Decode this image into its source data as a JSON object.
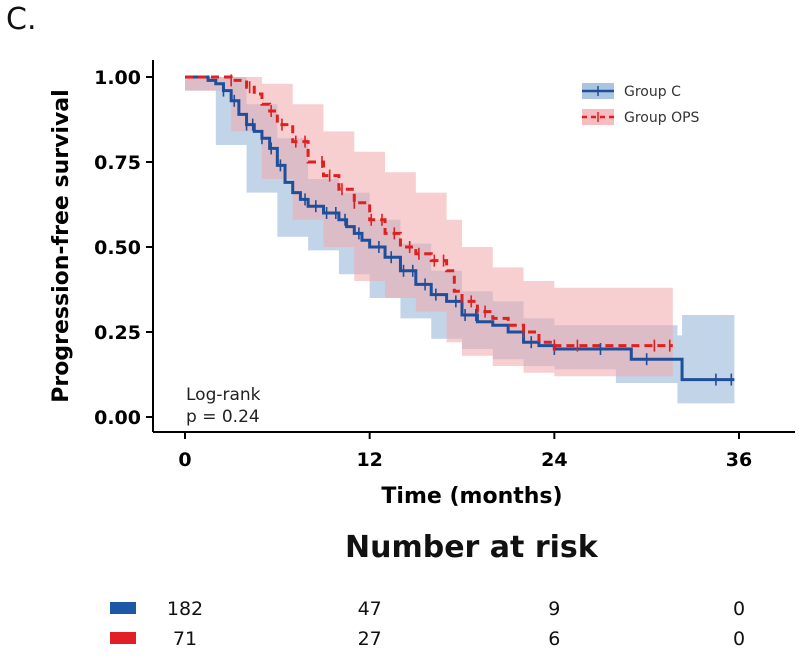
{
  "panel_label": "C.",
  "chart_data": {
    "type": "line",
    "subtype": "kaplan-meier",
    "ylabel": "Progression-free survival",
    "xlabel": "Time (months)",
    "xlim": [
      0,
      37
    ],
    "ylim": [
      0,
      1.0
    ],
    "xticks": [
      "0",
      "12",
      "24",
      "36"
    ],
    "xtick_values": [
      0,
      12,
      24,
      36
    ],
    "yticks": [
      "0.00",
      "0.25",
      "0.50",
      "0.75",
      "1.00"
    ],
    "ytick_values": [
      0,
      0.25,
      0.5,
      0.75,
      1.0
    ],
    "legend_position": "top-right",
    "annotation": [
      "Log-rank",
      "p = 0.24"
    ],
    "series": [
      {
        "name": "Group C",
        "color": "#1f4e9a",
        "band_color": "#8fb0d6",
        "line_style": "solid",
        "steps": [
          [
            0,
            1.0
          ],
          [
            1,
            1.0
          ],
          [
            1.5,
            0.99
          ],
          [
            2,
            0.98
          ],
          [
            2.5,
            0.96
          ],
          [
            3,
            0.93
          ],
          [
            3.5,
            0.89
          ],
          [
            4,
            0.86
          ],
          [
            4.5,
            0.84
          ],
          [
            5,
            0.82
          ],
          [
            5.5,
            0.79
          ],
          [
            6,
            0.74
          ],
          [
            6.5,
            0.69
          ],
          [
            7,
            0.66
          ],
          [
            7.5,
            0.64
          ],
          [
            8,
            0.62
          ],
          [
            9,
            0.6
          ],
          [
            10,
            0.58
          ],
          [
            10.5,
            0.56
          ],
          [
            11,
            0.54
          ],
          [
            11.5,
            0.52
          ],
          [
            12,
            0.5
          ],
          [
            13,
            0.47
          ],
          [
            14,
            0.43
          ],
          [
            15,
            0.39
          ],
          [
            16,
            0.36
          ],
          [
            17,
            0.34
          ],
          [
            18,
            0.3
          ],
          [
            19,
            0.28
          ],
          [
            20,
            0.27
          ],
          [
            21,
            0.25
          ],
          [
            22,
            0.22
          ],
          [
            23,
            0.21
          ],
          [
            24,
            0.2
          ],
          [
            28,
            0.2
          ],
          [
            29,
            0.17
          ],
          [
            32,
            0.17
          ],
          [
            32.3,
            0.11
          ],
          [
            35.7,
            0.11
          ]
        ],
        "lower": [
          [
            0,
            1.0
          ],
          [
            2,
            0.96
          ],
          [
            4,
            0.8
          ],
          [
            6,
            0.66
          ],
          [
            8,
            0.53
          ],
          [
            10,
            0.49
          ],
          [
            12,
            0.42
          ],
          [
            14,
            0.35
          ],
          [
            16,
            0.29
          ],
          [
            18,
            0.23
          ],
          [
            20,
            0.2
          ],
          [
            22,
            0.17
          ],
          [
            24,
            0.15
          ],
          [
            28,
            0.14
          ],
          [
            32,
            0.1
          ],
          [
            32.3,
            0.04
          ],
          [
            35.7,
            0.04
          ]
        ],
        "upper": [
          [
            0,
            1.0
          ],
          [
            2,
            1.0
          ],
          [
            4,
            0.92
          ],
          [
            6,
            0.82
          ],
          [
            8,
            0.7
          ],
          [
            10,
            0.66
          ],
          [
            12,
            0.58
          ],
          [
            14,
            0.51
          ],
          [
            16,
            0.43
          ],
          [
            18,
            0.37
          ],
          [
            20,
            0.34
          ],
          [
            22,
            0.29
          ],
          [
            24,
            0.27
          ],
          [
            28,
            0.27
          ],
          [
            32,
            0.24
          ],
          [
            32.3,
            0.3
          ],
          [
            35.7,
            0.3
          ]
        ],
        "censor_x": [
          2.5,
          3.2,
          4.0,
          4.4,
          5.0,
          5.6,
          6.2,
          7.8,
          8.5,
          9.2,
          9.8,
          10.4,
          11.3,
          12.6,
          13.4,
          14.2,
          14.8,
          15.6,
          16.3,
          17.6,
          18.2,
          18.9,
          22.5,
          24.0,
          27.0,
          30.0,
          34.5,
          35.5
        ]
      },
      {
        "name": "Group OPS",
        "color": "#e02020",
        "band_color": "#f3a7ac",
        "line_style": "dashed",
        "steps": [
          [
            0,
            1.0
          ],
          [
            2,
            1.0
          ],
          [
            3,
            0.99
          ],
          [
            4,
            0.97
          ],
          [
            4.5,
            0.95
          ],
          [
            5,
            0.92
          ],
          [
            5.5,
            0.9
          ],
          [
            6,
            0.86
          ],
          [
            7,
            0.81
          ],
          [
            8,
            0.75
          ],
          [
            9,
            0.71
          ],
          [
            10,
            0.67
          ],
          [
            11,
            0.63
          ],
          [
            12,
            0.58
          ],
          [
            13,
            0.54
          ],
          [
            14,
            0.5
          ],
          [
            15,
            0.48
          ],
          [
            16,
            0.46
          ],
          [
            17,
            0.43
          ],
          [
            17.5,
            0.37
          ],
          [
            18,
            0.34
          ],
          [
            19,
            0.31
          ],
          [
            20,
            0.29
          ],
          [
            21,
            0.27
          ],
          [
            22,
            0.25
          ],
          [
            23,
            0.22
          ],
          [
            24,
            0.21
          ],
          [
            29,
            0.21
          ],
          [
            30,
            0.21
          ],
          [
            31.7,
            0.21
          ]
        ],
        "lower": [
          [
            0,
            1.0
          ],
          [
            3,
            0.96
          ],
          [
            5,
            0.84
          ],
          [
            7,
            0.7
          ],
          [
            9,
            0.58
          ],
          [
            11,
            0.5
          ],
          [
            13,
            0.4
          ],
          [
            15,
            0.35
          ],
          [
            17,
            0.31
          ],
          [
            18,
            0.22
          ],
          [
            20,
            0.18
          ],
          [
            22,
            0.15
          ],
          [
            24,
            0.13
          ],
          [
            28,
            0.12
          ],
          [
            31.7,
            0.12
          ]
        ],
        "upper": [
          [
            0,
            1.0
          ],
          [
            3,
            1.0
          ],
          [
            5,
            0.98
          ],
          [
            7,
            0.92
          ],
          [
            9,
            0.84
          ],
          [
            11,
            0.78
          ],
          [
            13,
            0.72
          ],
          [
            15,
            0.66
          ],
          [
            17,
            0.58
          ],
          [
            18,
            0.5
          ],
          [
            20,
            0.44
          ],
          [
            22,
            0.4
          ],
          [
            24,
            0.38
          ],
          [
            28,
            0.38
          ],
          [
            31.7,
            0.38
          ]
        ],
        "censor_x": [
          3.0,
          4.2,
          5.6,
          6.3,
          7.2,
          7.8,
          8.9,
          9.4,
          10.2,
          11.0,
          12.1,
          12.8,
          13.6,
          14.6,
          15.2,
          16.2,
          16.8,
          18.6,
          19.5,
          22.0,
          24.0,
          25.5,
          30.5,
          31.5
        ]
      }
    ]
  },
  "number_at_risk": {
    "title": "Number at risk",
    "rows": [
      {
        "group": "Group C",
        "color": "#1f57a8",
        "values": [
          "182",
          "47",
          "9",
          "0"
        ]
      },
      {
        "group": "Group OPS",
        "color": "#e21f26",
        "values": [
          "71",
          "27",
          "6",
          "0"
        ]
      }
    ]
  }
}
